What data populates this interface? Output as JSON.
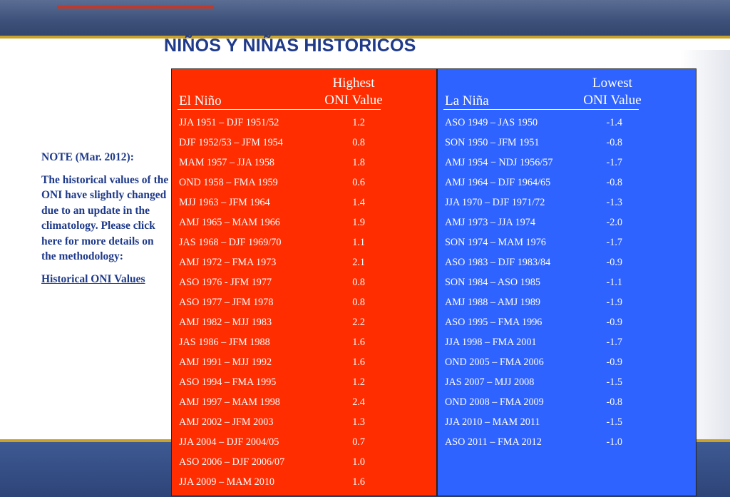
{
  "title": "NIÑOS Y NIÑAS HISTORICOS",
  "note": {
    "heading": "NOTE (Mar. 2012):",
    "body": "The historical values of the ONI have slightly changed due to an update in the climatology.  Please click here for more details on the methodology:",
    "link": "Historical ONI Values"
  },
  "el_nino": {
    "name_label": "El Niño",
    "value_label_line1": "Highest",
    "value_label_line2": "ONI Value",
    "rows": [
      {
        "period": "JJA 1951 – DJF 1951/52",
        "value": "1.2"
      },
      {
        "period": "DJF 1952/53 – JFM 1954",
        "value": "0.8"
      },
      {
        "period": "MAM 1957 – JJA 1958",
        "value": "1.8"
      },
      {
        "period": "OND 1958  – FMA 1959",
        "value": "0.6"
      },
      {
        "period": "MJJ 1963 – JFM 1964",
        "value": "1.4"
      },
      {
        "period": "AMJ 1965 – MAM 1966",
        "value": "1.9"
      },
      {
        "period": "JAS 1968 – DJF 1969/70",
        "value": "1.1"
      },
      {
        "period": "AMJ 1972 – FMA 1973",
        "value": "2.1"
      },
      {
        "period": "ASO 1976 - JFM 1977",
        "value": "0.8"
      },
      {
        "period": "ASO 1977 – JFM 1978",
        "value": "0.8"
      },
      {
        "period": "AMJ 1982 – MJJ 1983",
        "value": "2.2"
      },
      {
        "period": "JAS 1986 – JFM 1988",
        "value": "1.6"
      },
      {
        "period": "AMJ 1991 – MJJ 1992",
        "value": "1.6"
      },
      {
        "period": "ASO 1994 – FMA 1995",
        "value": "1.2"
      },
      {
        "period": "AMJ 1997 – MAM 1998",
        "value": "2.4"
      },
      {
        "period": "AMJ 2002 – JFM 2003",
        "value": "1.3"
      },
      {
        "period": "JJA 2004 – DJF 2004/05",
        "value": "0.7"
      },
      {
        "period": "ASO 2006 – DJF 2006/07",
        "value": "1.0"
      },
      {
        "period": "JJA 2009 – MAM 2010",
        "value": "1.6"
      }
    ]
  },
  "la_nina": {
    "name_label": "La Niña",
    "value_label_line1": "Lowest",
    "value_label_line2": "ONI Value",
    "rows": [
      {
        "period": "ASO 1949 – JAS 1950",
        "value": "-1.4"
      },
      {
        "period": "SON 1950 – JFM 1951",
        "value": "-0.8"
      },
      {
        "period": "AMJ 1954 − NDJ 1956/57",
        "value": "-1.7"
      },
      {
        "period": "AMJ 1964 – DJF 1964/65",
        "value": "-0.8"
      },
      {
        "period": "JJA 1970 – DJF 1971/72",
        "value": "-1.3"
      },
      {
        "period": "AMJ 1973 – JJA 1974",
        "value": "-2.0"
      },
      {
        "period": "SON 1974 – MAM 1976",
        "value": "-1.7"
      },
      {
        "period": "ASO 1983 – DJF 1983/84",
        "value": "-0.9"
      },
      {
        "period": "SON 1984 – ASO 1985",
        "value": "-1.1"
      },
      {
        "period": "AMJ 1988 – AMJ 1989",
        "value": "-1.9"
      },
      {
        "period": "ASO 1995 – FMA 1996",
        "value": "-0.9"
      },
      {
        "period": "JJA 1998 – FMA 2001",
        "value": "-1.7"
      },
      {
        "period": "OND 2005 – FMA 2006",
        "value": "-0.9"
      },
      {
        "period": "JAS 2007  – MJJ 2008",
        "value": "-1.5"
      },
      {
        "period": "OND 2008 – FMA 2009",
        "value": "-0.8"
      },
      {
        "period": "JJA 2010 – MAM 2011",
        "value": "-1.5"
      },
      {
        "period": "ASO 2011 – FMA 2012",
        "value": "-1.0"
      }
    ]
  }
}
